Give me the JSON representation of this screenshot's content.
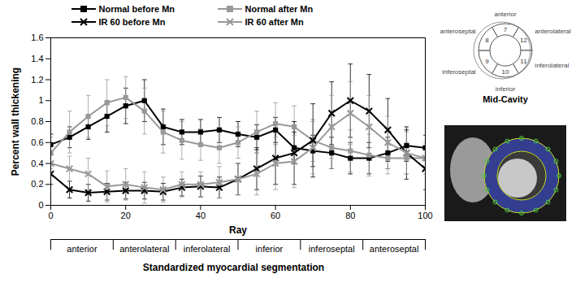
{
  "chart_data": {
    "type": "line",
    "x_label": "Ray",
    "y_label": "Percent wall thickening",
    "x": [
      0,
      5,
      10,
      15,
      20,
      25,
      30,
      35,
      40,
      45,
      50,
      55,
      60,
      65,
      70,
      75,
      80,
      85,
      90,
      95,
      100
    ],
    "xlim": [
      0,
      100
    ],
    "xticks": [
      0,
      20,
      40,
      60,
      80,
      100
    ],
    "ylim": [
      0,
      1.6
    ],
    "yticks": [
      0,
      0.2,
      0.4,
      0.6,
      0.8,
      1,
      1.2,
      1.4,
      1.6
    ],
    "legend": "top",
    "series": [
      {
        "name": "Normal before Mn",
        "color": "#000000",
        "marker": "square",
        "values": [
          0.58,
          0.65,
          0.75,
          0.85,
          0.95,
          1.0,
          0.75,
          0.7,
          0.7,
          0.72,
          0.68,
          0.65,
          0.72,
          0.55,
          0.52,
          0.5,
          0.45,
          0.45,
          0.5,
          0.57,
          0.55
        ],
        "errors": [
          0.1,
          0.1,
          0.12,
          0.15,
          0.17,
          0.2,
          0.17,
          0.12,
          0.12,
          0.12,
          0.12,
          0.12,
          0.12,
          0.15,
          0.15,
          0.15,
          0.15,
          0.15,
          0.15,
          0.15,
          0.12
        ]
      },
      {
        "name": "Normal after Mn",
        "color": "#999999",
        "marker": "square",
        "values": [
          0.5,
          0.7,
          0.85,
          0.98,
          1.03,
          0.9,
          0.7,
          0.62,
          0.58,
          0.55,
          0.6,
          0.7,
          0.78,
          0.75,
          0.62,
          0.55,
          0.52,
          0.48,
          0.45,
          0.45,
          0.45
        ],
        "errors": [
          0.15,
          0.2,
          0.2,
          0.22,
          0.2,
          0.22,
          0.2,
          0.18,
          0.15,
          0.15,
          0.15,
          0.2,
          0.2,
          0.2,
          0.2,
          0.2,
          0.2,
          0.2,
          0.15,
          0.15,
          0.1
        ]
      },
      {
        "name": "IR 60 before Mn",
        "color": "#000000",
        "marker": "cross",
        "values": [
          0.3,
          0.15,
          0.12,
          0.13,
          0.14,
          0.14,
          0.13,
          0.17,
          0.18,
          0.17,
          0.25,
          0.35,
          0.45,
          0.5,
          0.62,
          0.88,
          1.0,
          0.9,
          0.72,
          0.5,
          0.35
        ],
        "errors": [
          0.1,
          0.08,
          0.08,
          0.08,
          0.08,
          0.08,
          0.08,
          0.08,
          0.1,
          0.1,
          0.15,
          0.2,
          0.25,
          0.3,
          0.35,
          0.3,
          0.35,
          0.35,
          0.3,
          0.25,
          0.2
        ]
      },
      {
        "name": "IR 60 after Mn",
        "color": "#999999",
        "marker": "cross",
        "values": [
          0.4,
          0.35,
          0.3,
          0.18,
          0.2,
          0.17,
          0.15,
          0.2,
          0.2,
          0.22,
          0.25,
          0.3,
          0.4,
          0.42,
          0.55,
          0.75,
          0.88,
          0.75,
          0.6,
          0.5,
          0.45
        ],
        "errors": [
          0.1,
          0.12,
          0.15,
          0.15,
          0.15,
          0.15,
          0.12,
          0.12,
          0.12,
          0.15,
          0.15,
          0.2,
          0.25,
          0.25,
          0.25,
          0.3,
          0.3,
          0.3,
          0.25,
          0.2,
          0.15
        ]
      }
    ],
    "segments": {
      "label": "Standardized myocardial segmentation",
      "labels": [
        "anterior",
        "anterolateral",
        "inferolateral",
        "inferior",
        "inferoseptal",
        "anteroseptal"
      ]
    }
  },
  "diagram": {
    "title": "Mid-Cavity",
    "regions": [
      {
        "number": 7,
        "label": "anterior"
      },
      {
        "number": 12,
        "label": "anterolateral"
      },
      {
        "number": 11,
        "label": "inferolateral"
      },
      {
        "number": 10,
        "label": "inferior"
      },
      {
        "number": 9,
        "label": "inferoseptal"
      },
      {
        "number": 8,
        "label": "anteroseptal"
      }
    ]
  }
}
